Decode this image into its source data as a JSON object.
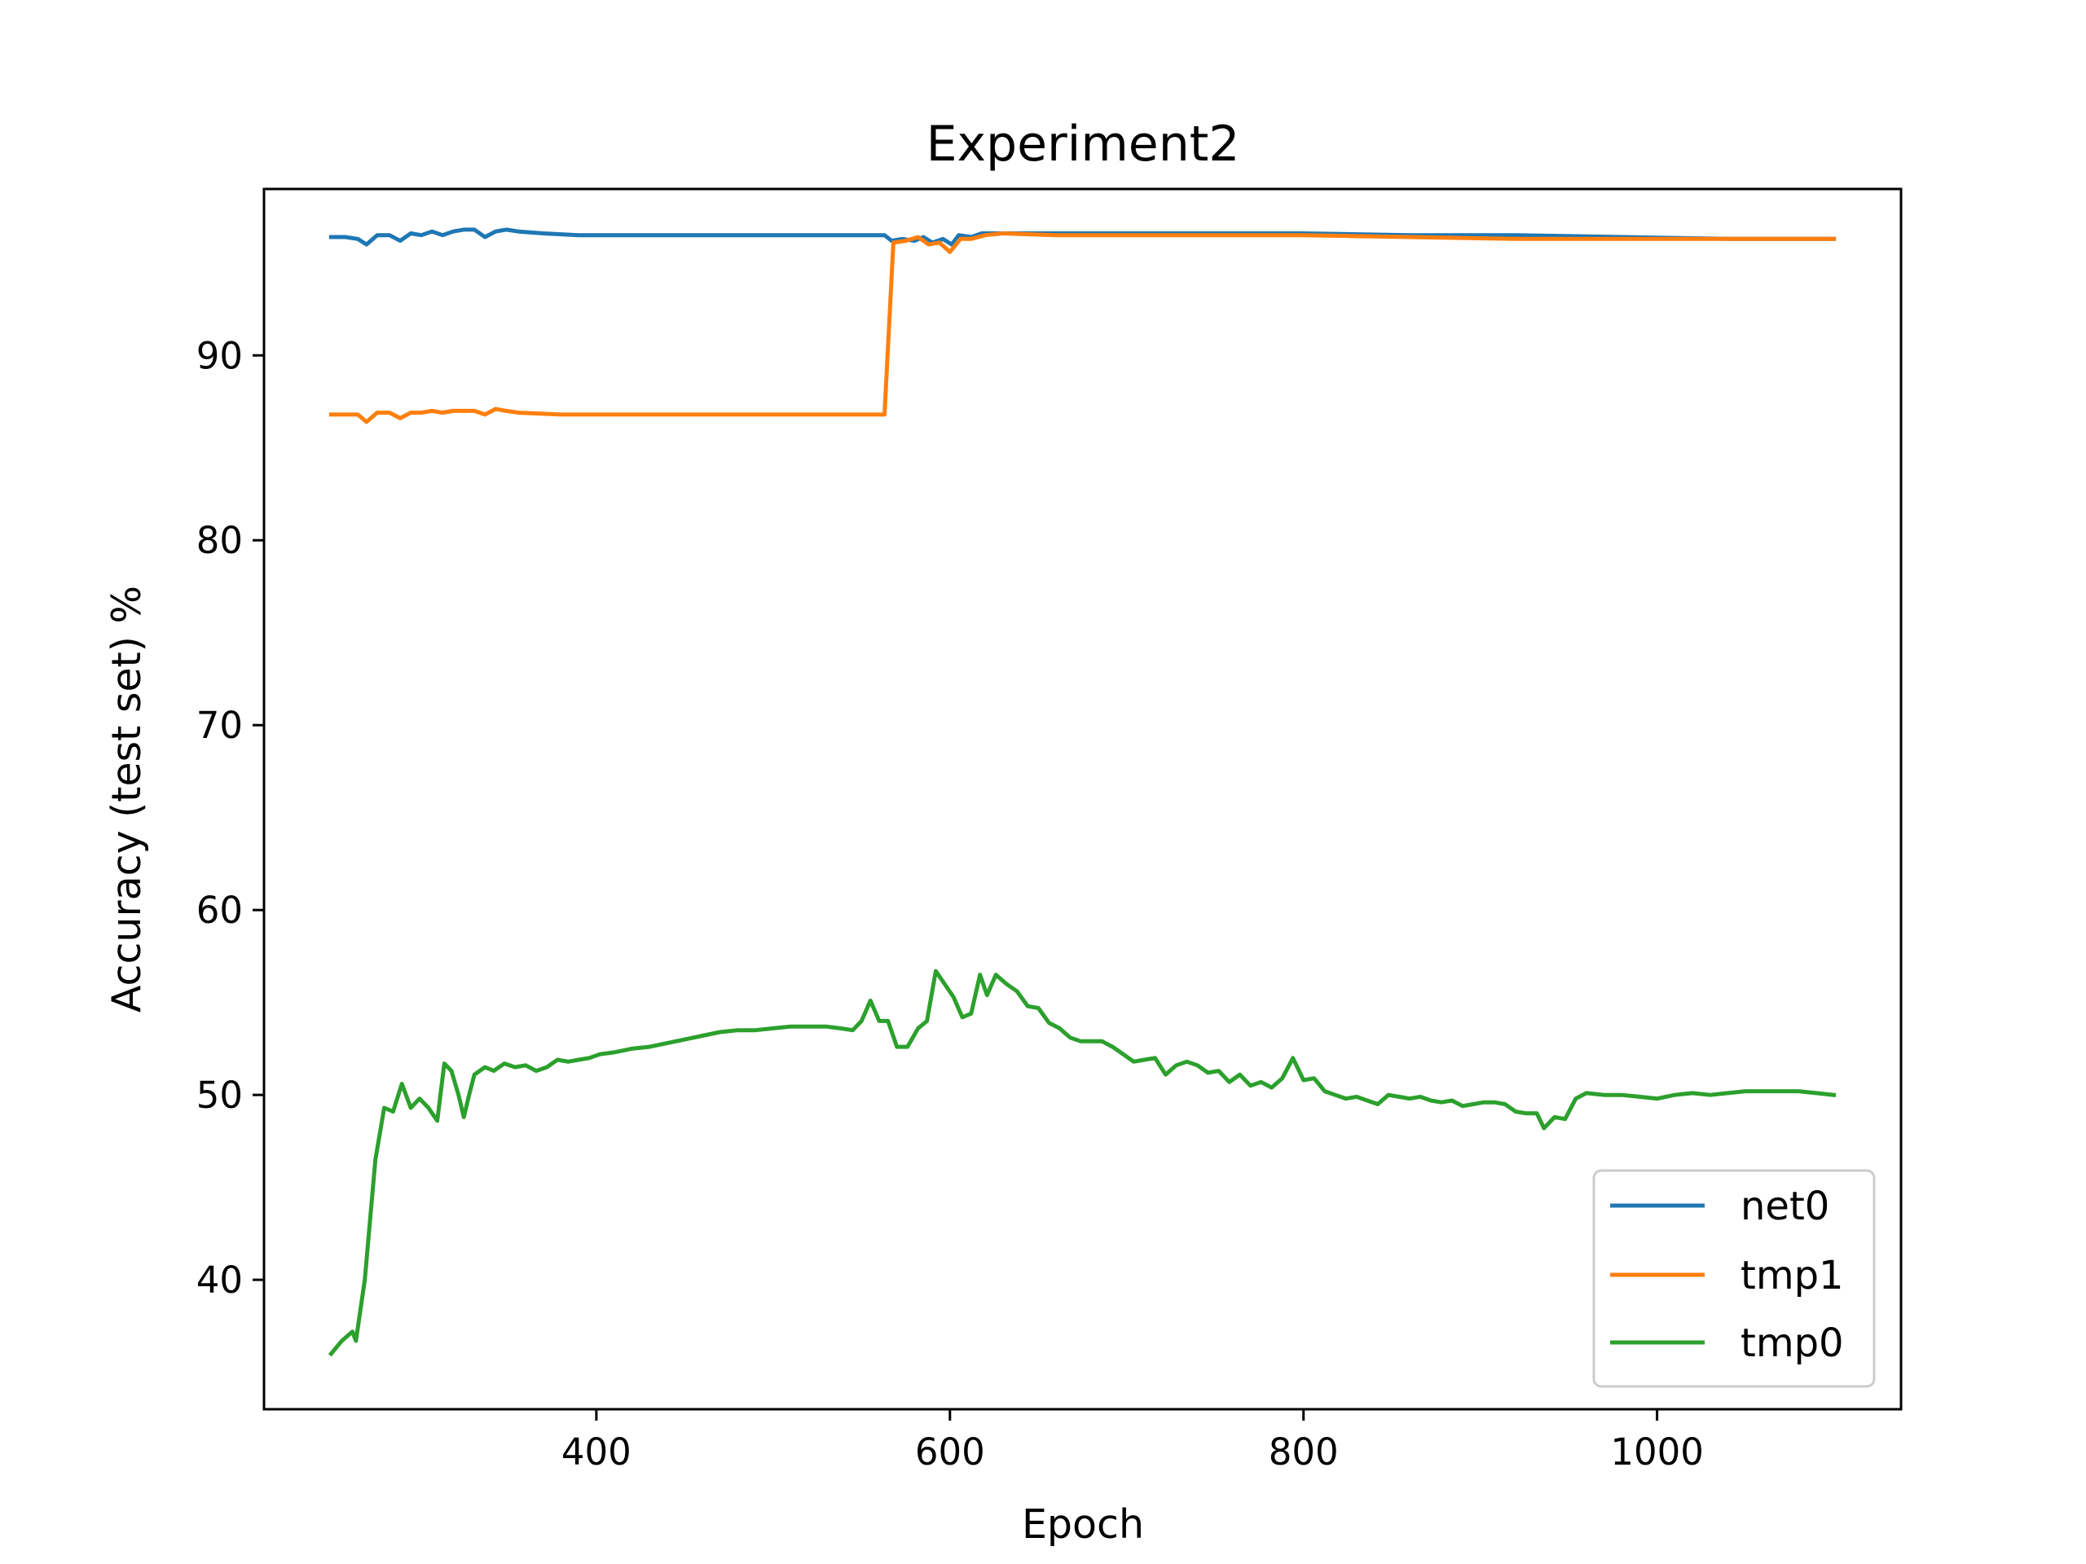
{
  "chart_data": {
    "type": "line",
    "title": "Experiment2",
    "xlabel": "Epoch",
    "ylabel": "Accuracy (test set) %",
    "xlim": [
      212,
      1138
    ],
    "ylim": [
      33.0,
      99.0
    ],
    "xticks": [
      400,
      600,
      800,
      1000
    ],
    "yticks": [
      40,
      50,
      60,
      70,
      80,
      90
    ],
    "grid": false,
    "legend_position": "lower right",
    "series": [
      {
        "name": "net0",
        "color": "#1f77b4",
        "points": [
          [
            250,
            96.4
          ],
          [
            258,
            96.4
          ],
          [
            265,
            96.3
          ],
          [
            270,
            96.0
          ],
          [
            276,
            96.5
          ],
          [
            283,
            96.5
          ],
          [
            289,
            96.2
          ],
          [
            295,
            96.6
          ],
          [
            301,
            96.5
          ],
          [
            307,
            96.7
          ],
          [
            313,
            96.5
          ],
          [
            319,
            96.7
          ],
          [
            325,
            96.8
          ],
          [
            331,
            96.8
          ],
          [
            337,
            96.4
          ],
          [
            343,
            96.7
          ],
          [
            349,
            96.8
          ],
          [
            356,
            96.7
          ],
          [
            370,
            96.6
          ],
          [
            390,
            96.5
          ],
          [
            420,
            96.5
          ],
          [
            460,
            96.5
          ],
          [
            500,
            96.5
          ],
          [
            540,
            96.5
          ],
          [
            563,
            96.5
          ],
          [
            567,
            96.2
          ],
          [
            573,
            96.3
          ],
          [
            580,
            96.2
          ],
          [
            585,
            96.4
          ],
          [
            590,
            96.1
          ],
          [
            596,
            96.3
          ],
          [
            601,
            96.0
          ],
          [
            605,
            96.5
          ],
          [
            612,
            96.4
          ],
          [
            618,
            96.6
          ],
          [
            625,
            96.6
          ],
          [
            640,
            96.6
          ],
          [
            700,
            96.6
          ],
          [
            760,
            96.6
          ],
          [
            800,
            96.6
          ],
          [
            860,
            96.5
          ],
          [
            920,
            96.5
          ],
          [
            980,
            96.4
          ],
          [
            1040,
            96.3
          ],
          [
            1100,
            96.3
          ]
        ]
      },
      {
        "name": "tmp1",
        "color": "#ff7f0e",
        "points": [
          [
            250,
            86.8
          ],
          [
            258,
            86.8
          ],
          [
            265,
            86.8
          ],
          [
            270,
            86.4
          ],
          [
            276,
            86.9
          ],
          [
            283,
            86.9
          ],
          [
            289,
            86.6
          ],
          [
            295,
            86.9
          ],
          [
            301,
            86.9
          ],
          [
            307,
            87.0
          ],
          [
            313,
            86.9
          ],
          [
            319,
            87.0
          ],
          [
            325,
            87.0
          ],
          [
            331,
            87.0
          ],
          [
            337,
            86.8
          ],
          [
            343,
            87.1
          ],
          [
            349,
            87.0
          ],
          [
            356,
            86.9
          ],
          [
            380,
            86.8
          ],
          [
            400,
            86.8
          ],
          [
            430,
            86.8
          ],
          [
            470,
            86.8
          ],
          [
            510,
            86.8
          ],
          [
            540,
            86.8
          ],
          [
            563,
            86.8
          ],
          [
            568,
            96.1
          ],
          [
            575,
            96.2
          ],
          [
            582,
            96.4
          ],
          [
            588,
            96.0
          ],
          [
            594,
            96.1
          ],
          [
            600,
            95.6
          ],
          [
            606,
            96.3
          ],
          [
            612,
            96.3
          ],
          [
            620,
            96.5
          ],
          [
            630,
            96.6
          ],
          [
            660,
            96.5
          ],
          [
            700,
            96.5
          ],
          [
            760,
            96.5
          ],
          [
            800,
            96.5
          ],
          [
            860,
            96.4
          ],
          [
            920,
            96.3
          ],
          [
            980,
            96.3
          ],
          [
            1040,
            96.3
          ],
          [
            1100,
            96.3
          ]
        ]
      },
      {
        "name": "tmp0",
        "color": "#2ca02c",
        "points": [
          [
            250,
            36.0
          ],
          [
            256,
            36.7
          ],
          [
            262,
            37.2
          ],
          [
            264,
            36.7
          ],
          [
            269,
            40.0
          ],
          [
            275,
            46.5
          ],
          [
            280,
            49.3
          ],
          [
            285,
            49.1
          ],
          [
            290,
            50.6
          ],
          [
            295,
            49.3
          ],
          [
            300,
            49.8
          ],
          [
            305,
            49.3
          ],
          [
            310,
            48.6
          ],
          [
            314,
            51.7
          ],
          [
            318,
            51.3
          ],
          [
            322,
            50.0
          ],
          [
            325,
            48.8
          ],
          [
            328,
            50.0
          ],
          [
            331,
            51.1
          ],
          [
            337,
            51.5
          ],
          [
            342,
            51.3
          ],
          [
            348,
            51.7
          ],
          [
            354,
            51.5
          ],
          [
            360,
            51.6
          ],
          [
            366,
            51.3
          ],
          [
            372,
            51.5
          ],
          [
            378,
            51.9
          ],
          [
            384,
            51.8
          ],
          [
            390,
            51.9
          ],
          [
            396,
            52.0
          ],
          [
            402,
            52.2
          ],
          [
            410,
            52.3
          ],
          [
            420,
            52.5
          ],
          [
            430,
            52.6
          ],
          [
            440,
            52.8
          ],
          [
            450,
            53.0
          ],
          [
            460,
            53.2
          ],
          [
            470,
            53.4
          ],
          [
            480,
            53.5
          ],
          [
            490,
            53.5
          ],
          [
            500,
            53.6
          ],
          [
            510,
            53.7
          ],
          [
            520,
            53.7
          ],
          [
            530,
            53.7
          ],
          [
            538,
            53.6
          ],
          [
            545,
            53.5
          ],
          [
            550,
            54.0
          ],
          [
            555,
            55.1
          ],
          [
            560,
            54.0
          ],
          [
            565,
            54.0
          ],
          [
            570,
            52.6
          ],
          [
            576,
            52.6
          ],
          [
            582,
            53.6
          ],
          [
            587,
            54.0
          ],
          [
            592,
            56.7
          ],
          [
            597,
            56.0
          ],
          [
            602,
            55.3
          ],
          [
            607,
            54.2
          ],
          [
            612,
            54.4
          ],
          [
            617,
            56.5
          ],
          [
            621,
            55.4
          ],
          [
            626,
            56.5
          ],
          [
            632,
            56.0
          ],
          [
            638,
            55.6
          ],
          [
            644,
            54.8
          ],
          [
            650,
            54.7
          ],
          [
            656,
            53.9
          ],
          [
            662,
            53.6
          ],
          [
            668,
            53.1
          ],
          [
            674,
            52.9
          ],
          [
            680,
            52.9
          ],
          [
            686,
            52.9
          ],
          [
            692,
            52.6
          ],
          [
            698,
            52.2
          ],
          [
            704,
            51.8
          ],
          [
            710,
            51.9
          ],
          [
            716,
            52.0
          ],
          [
            722,
            51.1
          ],
          [
            728,
            51.6
          ],
          [
            734,
            51.8
          ],
          [
            740,
            51.6
          ],
          [
            746,
            51.2
          ],
          [
            752,
            51.3
          ],
          [
            758,
            50.7
          ],
          [
            764,
            51.1
          ],
          [
            770,
            50.5
          ],
          [
            776,
            50.7
          ],
          [
            782,
            50.4
          ],
          [
            788,
            50.9
          ],
          [
            794,
            52.0
          ],
          [
            800,
            50.8
          ],
          [
            806,
            50.9
          ],
          [
            812,
            50.2
          ],
          [
            818,
            50.0
          ],
          [
            824,
            49.8
          ],
          [
            830,
            49.9
          ],
          [
            836,
            49.7
          ],
          [
            842,
            49.5
          ],
          [
            848,
            50.0
          ],
          [
            854,
            49.9
          ],
          [
            860,
            49.8
          ],
          [
            866,
            49.9
          ],
          [
            872,
            49.7
          ],
          [
            878,
            49.6
          ],
          [
            884,
            49.7
          ],
          [
            890,
            49.4
          ],
          [
            896,
            49.5
          ],
          [
            902,
            49.6
          ],
          [
            908,
            49.6
          ],
          [
            914,
            49.5
          ],
          [
            920,
            49.1
          ],
          [
            926,
            49.0
          ],
          [
            932,
            49.0
          ],
          [
            936,
            48.2
          ],
          [
            942,
            48.8
          ],
          [
            948,
            48.7
          ],
          [
            954,
            49.8
          ],
          [
            960,
            50.1
          ],
          [
            970,
            50.0
          ],
          [
            980,
            50.0
          ],
          [
            990,
            49.9
          ],
          [
            1000,
            49.8
          ],
          [
            1010,
            50.0
          ],
          [
            1020,
            50.1
          ],
          [
            1030,
            50.0
          ],
          [
            1040,
            50.1
          ],
          [
            1050,
            50.2
          ],
          [
            1060,
            50.2
          ],
          [
            1070,
            50.2
          ],
          [
            1080,
            50.2
          ],
          [
            1090,
            50.1
          ],
          [
            1100,
            50.0
          ],
          [
            1100,
            50.0
          ]
        ]
      }
    ]
  }
}
